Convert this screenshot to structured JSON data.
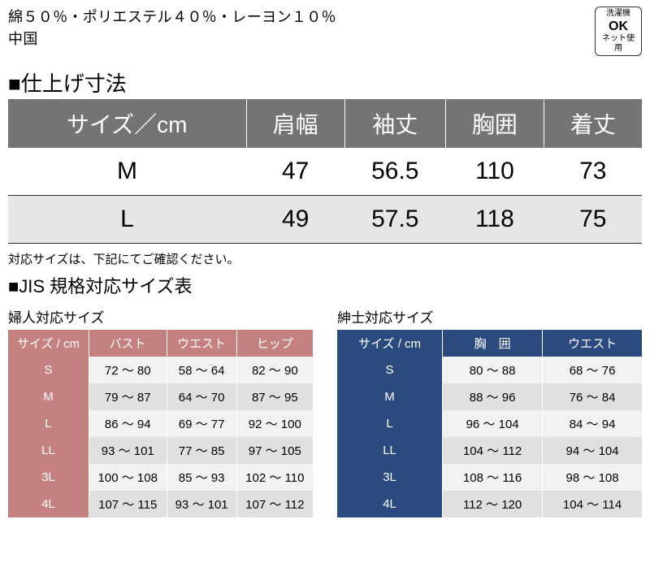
{
  "material_line1": "綿５０％・ポリエステル４０％・レーヨン１０％",
  "material_line2": "中国",
  "wash": {
    "l1": "洗濯機",
    "l2": "OK",
    "l3": "ネット使用"
  },
  "main": {
    "title": "■仕上げ寸法",
    "headers": [
      "サイズ／cm",
      "肩幅",
      "袖丈",
      "胸囲",
      "着丈"
    ],
    "rows": [
      [
        "M",
        "47",
        "56.5",
        "110",
        "73"
      ],
      [
        "L",
        "49",
        "57.5",
        "118",
        "75"
      ]
    ]
  },
  "note": "対応サイズは、下記にてご確認ください。",
  "jis_title": "■JIS 規格対応サイズ表",
  "women": {
    "caption": "婦人対応サイズ",
    "headers": [
      "サイズ / cm",
      "バスト",
      "ウエスト",
      "ヒップ"
    ],
    "rows": [
      [
        "S",
        "72 ～ 80",
        "58 ～ 64",
        "82 ～ 90"
      ],
      [
        "M",
        "79 ～ 87",
        "64 ～ 70",
        "87 ～ 95"
      ],
      [
        "L",
        "86 ～ 94",
        "69 ～ 77",
        "92 ～ 100"
      ],
      [
        "LL",
        "93 ～ 101",
        "77 ～ 85",
        "97 ～ 105"
      ],
      [
        "3L",
        "100 ～ 108",
        "85 ～ 93",
        "102 ～ 110"
      ],
      [
        "4L",
        "107 ～ 115",
        "93 ～ 101",
        "107 ～ 112"
      ]
    ]
  },
  "men": {
    "caption": "紳士対応サイズ",
    "headers": [
      "サイズ / cm",
      "胸　囲",
      "ウエスト"
    ],
    "rows": [
      [
        "S",
        "80 ～ 88",
        "68 ～ 76"
      ],
      [
        "M",
        "88 ～ 96",
        "76 ～ 84"
      ],
      [
        "L",
        "96 ～ 104",
        "84 ～ 94"
      ],
      [
        "LL",
        "104 ～ 112",
        "94 ～ 104"
      ],
      [
        "3L",
        "108 ～ 116",
        "98 ～ 108"
      ],
      [
        "4L",
        "112 ～ 120",
        "104 ～ 114"
      ]
    ]
  }
}
